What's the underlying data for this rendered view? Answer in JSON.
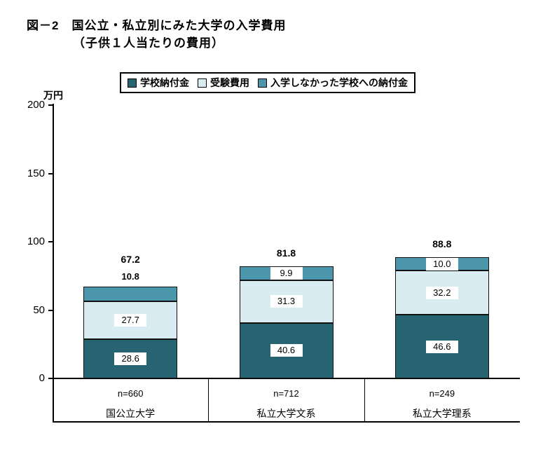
{
  "title": {
    "line1": "図－2　国公立・私立別にみた大学の入学費用",
    "line2": "（子供１人当たりの費用）"
  },
  "y_axis": {
    "unit": "万円",
    "ticks": [
      "200",
      "150",
      "100",
      "50",
      "0"
    ]
  },
  "legend": {
    "items": [
      {
        "label": "学校納付金",
        "color": "#266472"
      },
      {
        "label": "受験費用",
        "color": "#d9ecf2"
      },
      {
        "label": "入学しなかった学校への納付金",
        "color": "#4c96ac"
      }
    ]
  },
  "chart_data": {
    "type": "bar",
    "stacked": true,
    "title": "国公立・私立別にみた大学の入学費用（子供１人当たりの費用）",
    "ylabel": "万円",
    "ylim": [
      0,
      200
    ],
    "yticks": [
      0,
      50,
      100,
      150,
      200
    ],
    "grid": false,
    "legend_position": "top",
    "categories": [
      "国公立大学",
      "私立大学文系",
      "私立大学理系"
    ],
    "sample_sizes": [
      "n=660",
      "n=712",
      "n=249"
    ],
    "series": [
      {
        "name": "学校納付金",
        "color": "#266472",
        "values": [
          28.6,
          40.6,
          46.6
        ],
        "labels": [
          "28.6",
          "40.6",
          "46.6"
        ]
      },
      {
        "name": "受験費用",
        "color": "#d9ecf2",
        "values": [
          27.7,
          31.3,
          32.2
        ],
        "labels": [
          "27.7",
          "31.3",
          "32.2"
        ]
      },
      {
        "name": "入学しなかった学校への納付金",
        "color": "#4c96ac",
        "values": [
          10.8,
          9.9,
          10.0
        ],
        "labels": [
          "10.8",
          "9.9",
          "10.0"
        ]
      }
    ],
    "totals": [
      67.2,
      81.8,
      88.8
    ],
    "totals_labels": [
      "67.2",
      "81.8",
      "88.8"
    ],
    "top_label_outside_categories": [
      0
    ]
  }
}
